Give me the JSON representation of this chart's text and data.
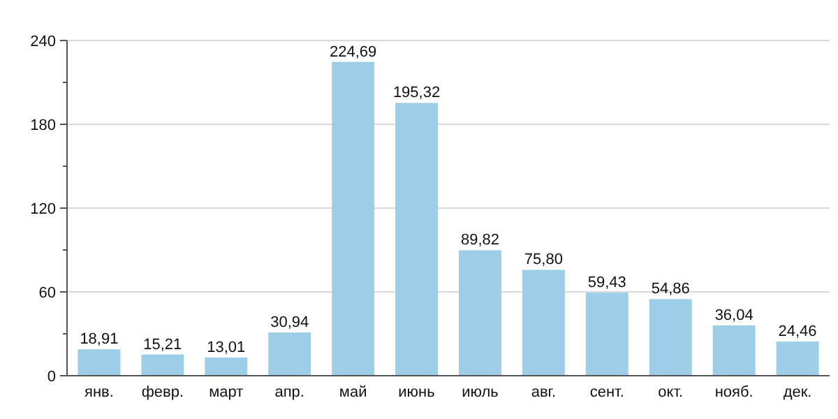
{
  "chart_data": {
    "type": "bar",
    "categories": [
      "янв.",
      "февр.",
      "март",
      "апр.",
      "май",
      "июнь",
      "июль",
      "авг.",
      "сент.",
      "окт.",
      "нояб.",
      "дек."
    ],
    "values": [
      18.91,
      15.21,
      13.01,
      30.94,
      224.69,
      195.32,
      89.82,
      75.8,
      59.43,
      54.86,
      36.04,
      24.46
    ],
    "value_labels": [
      "18,91",
      "15,21",
      "13,01",
      "30,94",
      "224,69",
      "195,32",
      "89,82",
      "75,80",
      "59,43",
      "54,86",
      "36,04",
      "24,46"
    ],
    "color": "#9dcde7",
    "ylim": [
      0,
      240
    ],
    "yticks": [
      0,
      {
        "value": 30,
        "label": null
      },
      60,
      {
        "value": 90,
        "label": null
      },
      120,
      {
        "value": 150,
        "label": null
      },
      180,
      {
        "value": 210,
        "label": null
      },
      240
    ],
    "grid": "y"
  }
}
